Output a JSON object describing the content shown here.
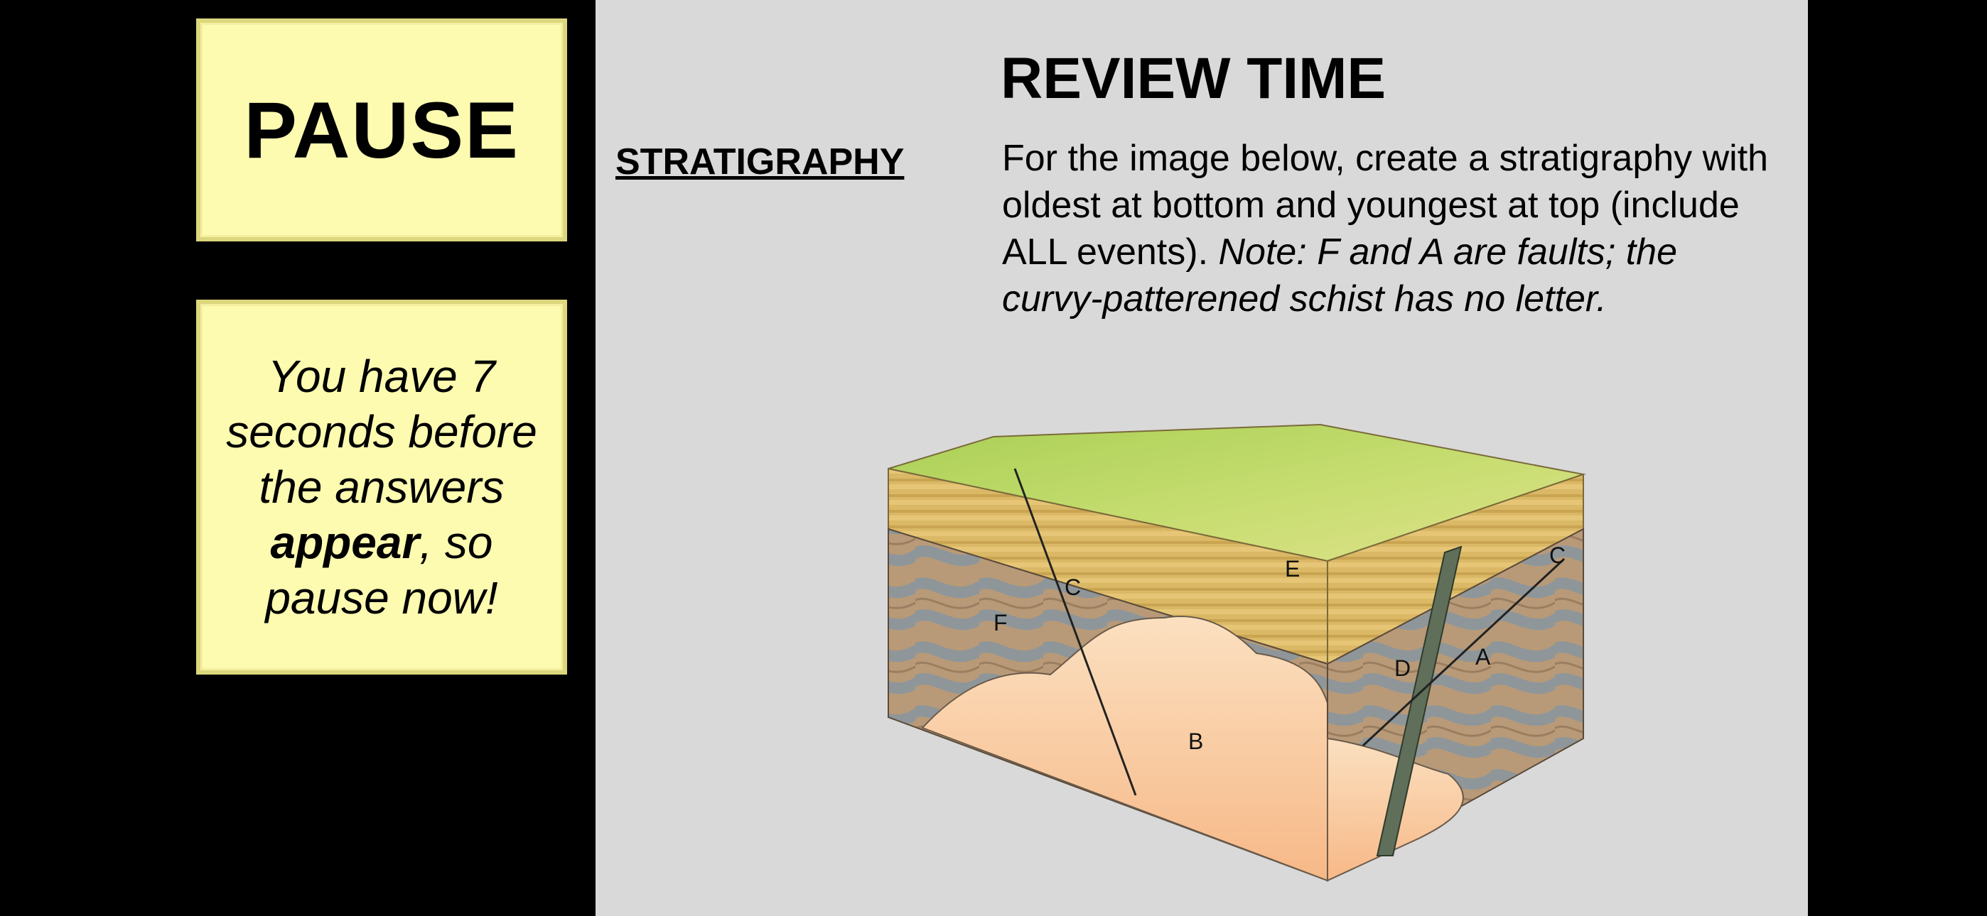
{
  "sidebar": {
    "pause_label": "PAUSE",
    "notice": {
      "part1": "You have 7 seconds before the answers ",
      "emphasis": "appear",
      "part2": ", so pause now!"
    }
  },
  "slide": {
    "title": "REVIEW TIME",
    "section_label": "STRATIGRAPHY",
    "instructions": {
      "plain": "For the image below, create a stratigraphy with oldest at bottom and youngest at top (include ALL events). ",
      "note": "Note: F and A are faults; the curvy-patterened schist has no letter."
    }
  },
  "diagram": {
    "labels": {
      "c_left": "C",
      "e": "E",
      "c_right": "C",
      "f": "F",
      "d": "D",
      "a": "A",
      "b": "B"
    },
    "colors": {
      "surface": "#b9d86a",
      "sediment": "#d8b660",
      "schist_brown": "#b89a78",
      "schist_gray": "#8e969a",
      "granite": "#f6c8a0",
      "dike": "#5f6f5a"
    }
  }
}
